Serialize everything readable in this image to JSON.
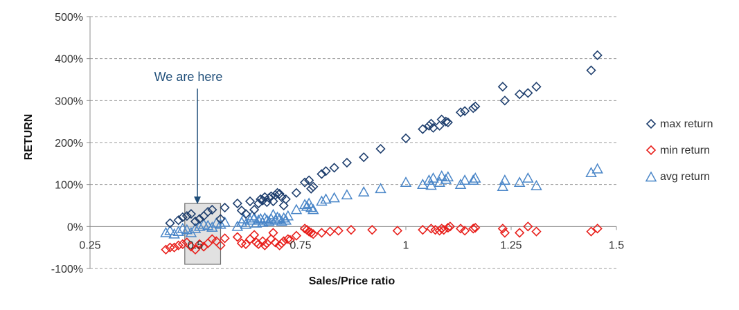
{
  "chart_data": {
    "type": "scatter",
    "title": "",
    "xlabel": "Sales/Price ratio",
    "ylabel": "RETURN",
    "xlim": [
      0.25,
      1.5
    ],
    "ylim": [
      -100,
      500
    ],
    "x_ticks": [
      0.25,
      0.5,
      0.75,
      1,
      1.25,
      1.5
    ],
    "x_tick_labels": [
      "0.25",
      "0.5",
      "0.75",
      "1",
      "1.25",
      "1.5"
    ],
    "y_ticks": [
      -100,
      0,
      100,
      200,
      300,
      400,
      500
    ],
    "y_tick_labels": [
      "-100%",
      "0%",
      "100%",
      "200%",
      "300%",
      "400%",
      "500%"
    ],
    "grid": "horizontal-dashed",
    "legend_position": "right",
    "annotation": {
      "text": "We are here",
      "arrow_target": [
        0.505,
        -5
      ],
      "highlight_x": [
        0.475,
        0.56
      ],
      "highlight_y": [
        -90,
        55
      ]
    },
    "series": [
      {
        "name": "max return",
        "marker": "diamond",
        "color": "#1f3f6e",
        "points": [
          [
            0.44,
            8
          ],
          [
            0.46,
            15
          ],
          [
            0.47,
            22
          ],
          [
            0.48,
            25
          ],
          [
            0.49,
            30
          ],
          [
            0.5,
            12
          ],
          [
            0.51,
            18
          ],
          [
            0.52,
            25
          ],
          [
            0.53,
            35
          ],
          [
            0.54,
            40
          ],
          [
            0.56,
            18
          ],
          [
            0.57,
            45
          ],
          [
            0.6,
            55
          ],
          [
            0.61,
            38
          ],
          [
            0.62,
            30
          ],
          [
            0.63,
            60
          ],
          [
            0.64,
            40
          ],
          [
            0.65,
            55
          ],
          [
            0.655,
            65
          ],
          [
            0.66,
            62
          ],
          [
            0.665,
            70
          ],
          [
            0.67,
            58
          ],
          [
            0.675,
            68
          ],
          [
            0.68,
            72
          ],
          [
            0.685,
            60
          ],
          [
            0.69,
            75
          ],
          [
            0.695,
            80
          ],
          [
            0.7,
            78
          ],
          [
            0.705,
            70
          ],
          [
            0.71,
            50
          ],
          [
            0.715,
            65
          ],
          [
            0.74,
            80
          ],
          [
            0.76,
            105
          ],
          [
            0.77,
            110
          ],
          [
            0.775,
            90
          ],
          [
            0.78,
            95
          ],
          [
            0.8,
            125
          ],
          [
            0.81,
            132
          ],
          [
            0.83,
            140
          ],
          [
            0.86,
            152
          ],
          [
            0.9,
            165
          ],
          [
            0.94,
            185
          ],
          [
            1.0,
            210
          ],
          [
            1.04,
            232
          ],
          [
            1.055,
            240
          ],
          [
            1.06,
            245
          ],
          [
            1.065,
            235
          ],
          [
            1.08,
            240
          ],
          [
            1.085,
            255
          ],
          [
            1.095,
            250
          ],
          [
            1.1,
            248
          ],
          [
            1.13,
            272
          ],
          [
            1.14,
            275
          ],
          [
            1.16,
            282
          ],
          [
            1.165,
            286
          ],
          [
            1.23,
            333
          ],
          [
            1.235,
            300
          ],
          [
            1.27,
            315
          ],
          [
            1.29,
            318
          ],
          [
            1.31,
            333
          ],
          [
            1.44,
            372
          ],
          [
            1.455,
            408
          ]
        ]
      },
      {
        "name": "min return",
        "marker": "diamond",
        "color": "#e8201c",
        "points": [
          [
            0.43,
            -55
          ],
          [
            0.44,
            -50
          ],
          [
            0.45,
            -50
          ],
          [
            0.46,
            -45
          ],
          [
            0.47,
            -42
          ],
          [
            0.48,
            -38
          ],
          [
            0.49,
            -48
          ],
          [
            0.5,
            -55
          ],
          [
            0.51,
            -42
          ],
          [
            0.52,
            -48
          ],
          [
            0.53,
            -40
          ],
          [
            0.54,
            -30
          ],
          [
            0.55,
            -35
          ],
          [
            0.56,
            -45
          ],
          [
            0.57,
            -28
          ],
          [
            0.6,
            -25
          ],
          [
            0.61,
            -40
          ],
          [
            0.62,
            -42
          ],
          [
            0.63,
            -30
          ],
          [
            0.64,
            -20
          ],
          [
            0.645,
            -38
          ],
          [
            0.65,
            -42
          ],
          [
            0.66,
            -35
          ],
          [
            0.665,
            -45
          ],
          [
            0.67,
            -40
          ],
          [
            0.68,
            -30
          ],
          [
            0.685,
            -15
          ],
          [
            0.69,
            -38
          ],
          [
            0.7,
            -45
          ],
          [
            0.705,
            -40
          ],
          [
            0.71,
            -35
          ],
          [
            0.72,
            -30
          ],
          [
            0.725,
            -32
          ],
          [
            0.74,
            -22
          ],
          [
            0.76,
            -5
          ],
          [
            0.765,
            -8
          ],
          [
            0.77,
            -12
          ],
          [
            0.775,
            -15
          ],
          [
            0.78,
            -18
          ],
          [
            0.8,
            -15
          ],
          [
            0.82,
            -12
          ],
          [
            0.84,
            -10
          ],
          [
            0.87,
            -8
          ],
          [
            0.92,
            -8
          ],
          [
            0.98,
            -10
          ],
          [
            1.04,
            -8
          ],
          [
            1.06,
            -5
          ],
          [
            1.07,
            -8
          ],
          [
            1.08,
            -10
          ],
          [
            1.085,
            -5
          ],
          [
            1.09,
            -8
          ],
          [
            1.1,
            -3
          ],
          [
            1.105,
            0
          ],
          [
            1.13,
            -5
          ],
          [
            1.14,
            -10
          ],
          [
            1.16,
            -5
          ],
          [
            1.165,
            -3
          ],
          [
            1.23,
            -5
          ],
          [
            1.235,
            -15
          ],
          [
            1.27,
            -15
          ],
          [
            1.29,
            0
          ],
          [
            1.31,
            -12
          ],
          [
            1.44,
            -12
          ],
          [
            1.455,
            -5
          ]
        ]
      },
      {
        "name": "avg return",
        "marker": "triangle",
        "color": "#4a86c8",
        "points": [
          [
            0.43,
            -15
          ],
          [
            0.44,
            -10
          ],
          [
            0.45,
            -18
          ],
          [
            0.46,
            -12
          ],
          [
            0.47,
            -5
          ],
          [
            0.48,
            -8
          ],
          [
            0.49,
            -15
          ],
          [
            0.5,
            -5
          ],
          [
            0.51,
            0
          ],
          [
            0.52,
            5
          ],
          [
            0.53,
            2
          ],
          [
            0.54,
            -2
          ],
          [
            0.55,
            8
          ],
          [
            0.56,
            5
          ],
          [
            0.57,
            10
          ],
          [
            0.6,
            0
          ],
          [
            0.61,
            10
          ],
          [
            0.615,
            18
          ],
          [
            0.62,
            5
          ],
          [
            0.63,
            15
          ],
          [
            0.635,
            25
          ],
          [
            0.64,
            20
          ],
          [
            0.645,
            8
          ],
          [
            0.65,
            15
          ],
          [
            0.655,
            18
          ],
          [
            0.66,
            10
          ],
          [
            0.665,
            20
          ],
          [
            0.67,
            15
          ],
          [
            0.675,
            12
          ],
          [
            0.68,
            18
          ],
          [
            0.685,
            28
          ],
          [
            0.69,
            15
          ],
          [
            0.695,
            22
          ],
          [
            0.7,
            18
          ],
          [
            0.705,
            12
          ],
          [
            0.71,
            20
          ],
          [
            0.715,
            15
          ],
          [
            0.72,
            25
          ],
          [
            0.74,
            40
          ],
          [
            0.76,
            52
          ],
          [
            0.765,
            48
          ],
          [
            0.77,
            55
          ],
          [
            0.775,
            45
          ],
          [
            0.78,
            40
          ],
          [
            0.8,
            60
          ],
          [
            0.81,
            65
          ],
          [
            0.83,
            68
          ],
          [
            0.86,
            75
          ],
          [
            0.9,
            82
          ],
          [
            0.94,
            90
          ],
          [
            1.0,
            105
          ],
          [
            1.04,
            100
          ],
          [
            1.055,
            110
          ],
          [
            1.06,
            98
          ],
          [
            1.065,
            115
          ],
          [
            1.08,
            105
          ],
          [
            1.085,
            120
          ],
          [
            1.095,
            112
          ],
          [
            1.1,
            118
          ],
          [
            1.13,
            100
          ],
          [
            1.14,
            110
          ],
          [
            1.16,
            110
          ],
          [
            1.165,
            115
          ],
          [
            1.23,
            95
          ],
          [
            1.235,
            110
          ],
          [
            1.27,
            105
          ],
          [
            1.29,
            115
          ],
          [
            1.31,
            97
          ],
          [
            1.44,
            128
          ],
          [
            1.455,
            137
          ]
        ]
      }
    ]
  }
}
